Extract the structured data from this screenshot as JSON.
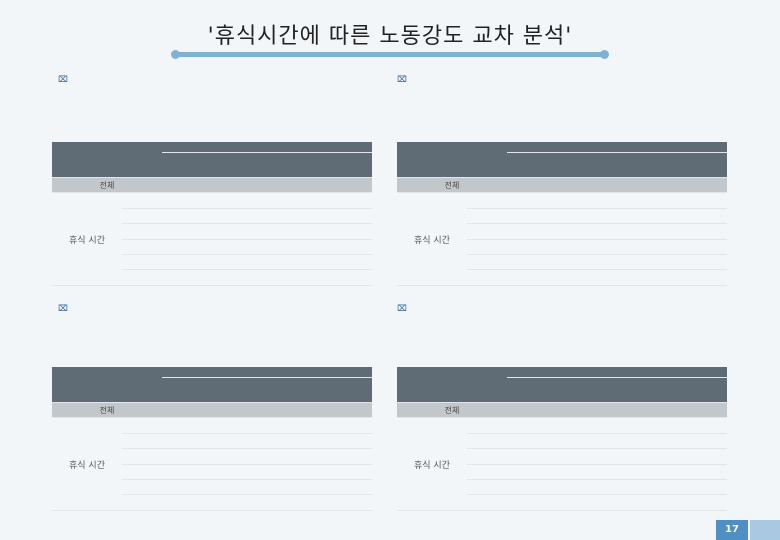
{
  "title": "'휴식시간에 따른 노동강도 교차 분석'",
  "page_number": "17",
  "tables": [
    {
      "group_label": "휴식 시간",
      "top_header": "",
      "columns": [
        "",
        "",
        "",
        "",
        "",
        "",
        "",
        ""
      ],
      "total_row": [
        "전체",
        "",
        "",
        "",
        "",
        "",
        "",
        ""
      ],
      "rows": [
        [
          "",
          "",
          "",
          "",
          "",
          "",
          "",
          ""
        ],
        [
          "",
          "",
          "",
          "",
          "",
          "",
          "",
          ""
        ],
        [
          "",
          "",
          "",
          "",
          "",
          "",
          "",
          ""
        ],
        [
          "",
          "",
          "",
          "",
          "",
          "",
          "",
          ""
        ],
        [
          "",
          "",
          "",
          "",
          "",
          "",
          "",
          ""
        ],
        [
          "",
          "",
          "",
          "",
          "",
          "",
          "",
          ""
        ]
      ]
    },
    {
      "group_label": "휴식 시간",
      "top_header": "",
      "columns": [
        "",
        "",
        "",
        "",
        "",
        "",
        "",
        ""
      ],
      "total_row": [
        "전체",
        "",
        "",
        "",
        "",
        "",
        "",
        ""
      ],
      "rows": [
        [
          "",
          "",
          "",
          "",
          "",
          "",
          "",
          ""
        ],
        [
          "",
          "",
          "",
          "",
          "",
          "",
          "",
          ""
        ],
        [
          "",
          "",
          "",
          "",
          "",
          "",
          "",
          ""
        ],
        [
          "",
          "",
          "",
          "",
          "",
          "",
          "",
          ""
        ],
        [
          "",
          "",
          "",
          "",
          "",
          "",
          "",
          ""
        ],
        [
          "",
          "",
          "",
          "",
          "",
          "",
          "",
          ""
        ]
      ]
    },
    {
      "group_label": "휴식 시간",
      "top_header": "",
      "columns": [
        "",
        "",
        "",
        "",
        "",
        "",
        "",
        ""
      ],
      "total_row": [
        "전체",
        "",
        "",
        "",
        "",
        "",
        "",
        ""
      ],
      "rows": [
        [
          "",
          "",
          "",
          "",
          "",
          "",
          "",
          ""
        ],
        [
          "",
          "",
          "",
          "",
          "",
          "",
          "",
          ""
        ],
        [
          "",
          "",
          "",
          "",
          "",
          "",
          "",
          ""
        ],
        [
          "",
          "",
          "",
          "",
          "",
          "",
          "",
          ""
        ],
        [
          "",
          "",
          "",
          "",
          "",
          "",
          "",
          ""
        ],
        [
          "",
          "",
          "",
          "",
          "",
          "",
          "",
          ""
        ]
      ]
    },
    {
      "group_label": "휴식 시간",
      "top_header": "",
      "columns": [
        "",
        "",
        "",
        "",
        "",
        "",
        "",
        ""
      ],
      "total_row": [
        "전체",
        "",
        "",
        "",
        "",
        "",
        "",
        ""
      ],
      "rows": [
        [
          "",
          "",
          "",
          "",
          "",
          "",
          "",
          ""
        ],
        [
          "",
          "",
          "",
          "",
          "",
          "",
          "",
          ""
        ],
        [
          "",
          "",
          "",
          "",
          "",
          "",
          "",
          ""
        ],
        [
          "",
          "",
          "",
          "",
          "",
          "",
          "",
          ""
        ],
        [
          "",
          "",
          "",
          "",
          "",
          "",
          "",
          ""
        ],
        [
          "",
          "",
          "",
          "",
          "",
          "",
          "",
          ""
        ]
      ]
    }
  ]
}
